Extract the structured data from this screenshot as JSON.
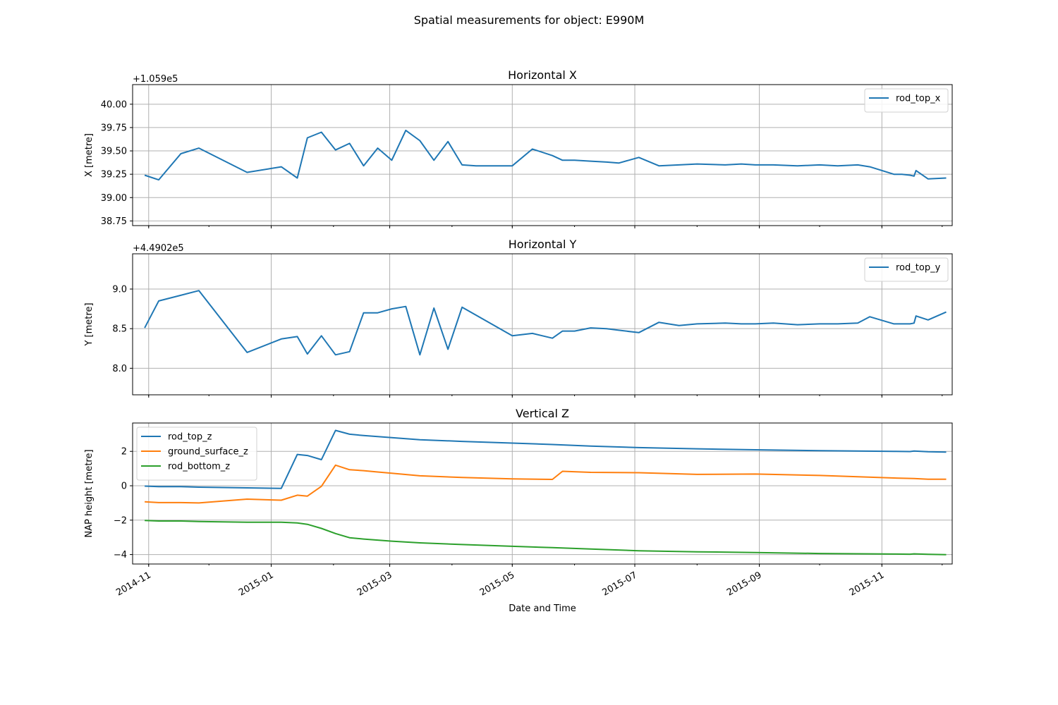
{
  "chart_data": {
    "suptitle": "Spatial measurements for object: E990M",
    "type": "line",
    "xlabel": "Date and Time",
    "x_ticks": [
      "2014-11",
      "2015-01",
      "2015-03",
      "2015-05",
      "2015-07",
      "2015-09",
      "2015-11"
    ],
    "x_range": [
      "2014-10-24",
      "2015-12-06"
    ],
    "panels": [
      {
        "title": "Horizontal X",
        "ylabel": "X [metre]",
        "offset_label": "+1.059e5",
        "ylim": [
          38.7,
          40.21
        ],
        "y_ticks": [
          "38.75",
          "39.00",
          "39.25",
          "39.50",
          "39.75",
          "40.00"
        ],
        "legend_position": "upper right",
        "series": [
          {
            "name": "rod_top_x",
            "color": "#1f77b4",
            "x": [
              "2014-10-30",
              "2014-11-06",
              "2014-11-17",
              "2014-11-26",
              "2014-12-20",
              "2015-01-06",
              "2015-01-14",
              "2015-01-19",
              "2015-01-26",
              "2015-02-02",
              "2015-02-09",
              "2015-02-16",
              "2015-02-23",
              "2015-03-02",
              "2015-03-09",
              "2015-03-16",
              "2015-03-23",
              "2015-03-30",
              "2015-04-06",
              "2015-04-13",
              "2015-05-01",
              "2015-05-11",
              "2015-05-21",
              "2015-05-26",
              "2015-06-01",
              "2015-06-09",
              "2015-06-17",
              "2015-06-23",
              "2015-07-03",
              "2015-07-13",
              "2015-07-23",
              "2015-08-01",
              "2015-08-15",
              "2015-08-23",
              "2015-08-30",
              "2015-09-08",
              "2015-09-20",
              "2015-10-01",
              "2015-10-10",
              "2015-10-20",
              "2015-10-26",
              "2015-11-07",
              "2015-11-11",
              "2015-11-15",
              "2015-11-17",
              "2015-11-18",
              "2015-11-24",
              "2015-12-03"
            ],
            "y": [
              39.24,
              39.19,
              39.47,
              39.53,
              39.27,
              39.33,
              39.21,
              39.64,
              39.7,
              39.51,
              39.58,
              39.34,
              39.53,
              39.4,
              39.72,
              39.61,
              39.4,
              39.6,
              39.35,
              39.34,
              39.34,
              39.52,
              39.45,
              39.4,
              39.4,
              39.39,
              39.38,
              39.37,
              39.43,
              39.34,
              39.35,
              39.36,
              39.35,
              39.36,
              39.35,
              39.35,
              39.34,
              39.35,
              39.34,
              39.35,
              39.33,
              39.25,
              39.25,
              39.24,
              39.23,
              39.29,
              39.2,
              39.21
            ]
          }
        ]
      },
      {
        "title": "Horizontal Y",
        "ylabel": "Y [metre]",
        "offset_label": "+4.4902e5",
        "ylim": [
          7.665,
          9.445
        ],
        "y_ticks": [
          "8.0",
          "8.5",
          "9.0"
        ],
        "legend_position": "upper right",
        "series": [
          {
            "name": "rod_top_y",
            "color": "#1f77b4",
            "x": [
              "2014-10-30",
              "2014-11-06",
              "2014-11-26",
              "2014-12-20",
              "2015-01-06",
              "2015-01-14",
              "2015-01-19",
              "2015-01-26",
              "2015-02-02",
              "2015-02-09",
              "2015-02-16",
              "2015-02-23",
              "2015-03-02",
              "2015-03-09",
              "2015-03-16",
              "2015-03-23",
              "2015-03-30",
              "2015-04-06",
              "2015-05-01",
              "2015-05-11",
              "2015-05-21",
              "2015-05-26",
              "2015-06-01",
              "2015-06-09",
              "2015-06-17",
              "2015-06-23",
              "2015-07-03",
              "2015-07-13",
              "2015-07-23",
              "2015-08-01",
              "2015-08-15",
              "2015-08-23",
              "2015-08-30",
              "2015-09-08",
              "2015-09-20",
              "2015-10-01",
              "2015-10-10",
              "2015-10-20",
              "2015-10-26",
              "2015-11-07",
              "2015-11-11",
              "2015-11-15",
              "2015-11-17",
              "2015-11-18",
              "2015-11-24",
              "2015-12-03"
            ],
            "y": [
              8.51,
              8.85,
              8.98,
              8.2,
              8.37,
              8.4,
              8.18,
              8.41,
              8.17,
              8.21,
              8.7,
              8.7,
              8.75,
              8.78,
              8.17,
              8.76,
              8.24,
              8.77,
              8.41,
              8.44,
              8.38,
              8.47,
              8.47,
              8.51,
              8.5,
              8.48,
              8.45,
              8.58,
              8.54,
              8.56,
              8.57,
              8.56,
              8.56,
              8.57,
              8.55,
              8.56,
              8.56,
              8.57,
              8.65,
              8.56,
              8.56,
              8.56,
              8.57,
              8.66,
              8.61,
              8.71
            ]
          }
        ]
      },
      {
        "title": "Vertical Z",
        "ylabel": "NAP height [metre]",
        "offset_label": "",
        "ylim": [
          -4.55,
          3.65
        ],
        "y_ticks": [
          "−4",
          "−2",
          "0",
          "2"
        ],
        "legend_position": "upper left",
        "series": [
          {
            "name": "rod_top_z",
            "color": "#1f77b4",
            "x": [
              "2014-10-30",
              "2014-11-06",
              "2014-11-17",
              "2014-11-26",
              "2014-12-20",
              "2015-01-06",
              "2015-01-14",
              "2015-01-19",
              "2015-01-26",
              "2015-02-02",
              "2015-02-09",
              "2015-02-16",
              "2015-02-23",
              "2015-03-02",
              "2015-03-16",
              "2015-04-06",
              "2015-05-01",
              "2015-05-21",
              "2015-06-09",
              "2015-07-03",
              "2015-08-01",
              "2015-08-30",
              "2015-10-01",
              "2015-11-07",
              "2015-11-15",
              "2015-11-17",
              "2015-11-24",
              "2015-12-03"
            ],
            "y": [
              -0.02,
              -0.05,
              -0.05,
              -0.08,
              -0.12,
              -0.15,
              1.82,
              1.76,
              1.52,
              3.22,
              3.0,
              2.92,
              2.86,
              2.8,
              2.68,
              2.58,
              2.48,
              2.4,
              2.31,
              2.22,
              2.15,
              2.09,
              2.04,
              2.0,
              1.99,
              2.02,
              1.98,
              1.96
            ]
          },
          {
            "name": "ground_surface_z",
            "color": "#ff7f0e",
            "x": [
              "2014-10-30",
              "2014-11-06",
              "2014-11-17",
              "2014-11-26",
              "2014-12-20",
              "2015-01-06",
              "2015-01-14",
              "2015-01-19",
              "2015-01-26",
              "2015-02-02",
              "2015-02-09",
              "2015-02-16",
              "2015-02-23",
              "2015-03-02",
              "2015-03-16",
              "2015-04-06",
              "2015-05-01",
              "2015-05-21",
              "2015-05-26",
              "2015-06-09",
              "2015-07-03",
              "2015-08-01",
              "2015-08-30",
              "2015-10-01",
              "2015-11-07",
              "2015-11-17",
              "2015-11-24",
              "2015-12-03"
            ],
            "y": [
              -0.93,
              -0.98,
              -0.98,
              -1.0,
              -0.78,
              -0.84,
              -0.55,
              -0.6,
              -0.03,
              1.2,
              0.93,
              0.88,
              0.8,
              0.73,
              0.58,
              0.48,
              0.4,
              0.37,
              0.84,
              0.78,
              0.76,
              0.66,
              0.68,
              0.6,
              0.45,
              0.42,
              0.38,
              0.38
            ]
          },
          {
            "name": "rod_bottom_z",
            "color": "#2ca02c",
            "x": [
              "2014-10-30",
              "2014-11-06",
              "2014-11-17",
              "2014-11-26",
              "2014-12-20",
              "2015-01-06",
              "2015-01-14",
              "2015-01-19",
              "2015-01-26",
              "2015-02-02",
              "2015-02-09",
              "2015-02-16",
              "2015-02-23",
              "2015-03-02",
              "2015-03-16",
              "2015-04-06",
              "2015-05-01",
              "2015-05-21",
              "2015-06-09",
              "2015-07-03",
              "2015-08-01",
              "2015-08-30",
              "2015-10-01",
              "2015-11-07",
              "2015-11-15",
              "2015-11-17",
              "2015-11-24",
              "2015-12-03"
            ],
            "y": [
              -2.02,
              -2.05,
              -2.05,
              -2.08,
              -2.12,
              -2.12,
              -2.16,
              -2.24,
              -2.48,
              -2.78,
              -3.02,
              -3.1,
              -3.16,
              -3.22,
              -3.32,
              -3.42,
              -3.52,
              -3.6,
              -3.68,
              -3.78,
              -3.84,
              -3.88,
              -3.94,
              -3.97,
              -3.98,
              -3.96,
              -3.99,
              -4.01
            ]
          }
        ]
      }
    ]
  }
}
